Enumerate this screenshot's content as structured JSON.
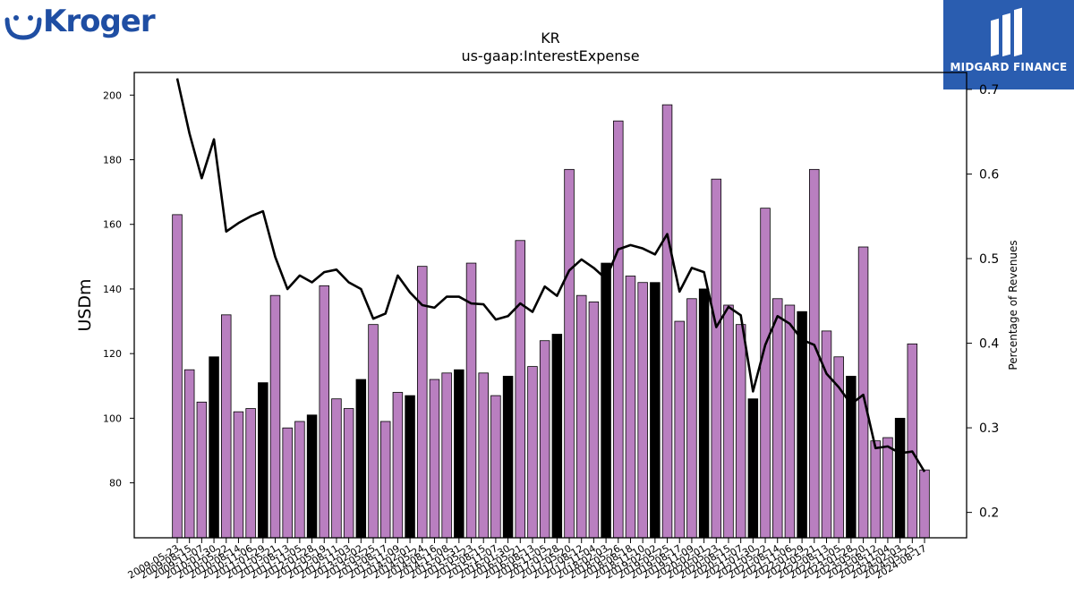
{
  "logos": {
    "left_brand": "Kroger",
    "right_brand": "MIDGARD FINANCE"
  },
  "colors": {
    "bar_default": "#b97fc0",
    "bar_highlight": "#000000",
    "line": "#000000",
    "brand_blue": "#2a5db0",
    "kroger_blue": "#1f4ea3"
  },
  "chart_data": {
    "type": "bar",
    "title": "KR",
    "subtitle": "us-gaap:InterestExpense",
    "ylabel": "USDm",
    "ylabel_right": "Percentage of Revenues",
    "ylim": [
      63,
      207
    ],
    "ylim_right": [
      0.17,
      0.72
    ],
    "yticks": [
      80,
      100,
      120,
      140,
      160,
      180,
      200
    ],
    "yticks_right": [
      0.2,
      0.3,
      0.4,
      0.5,
      0.6,
      0.7
    ],
    "categories": [
      "2009-05-23",
      "2009-08-15",
      "2009-11-07",
      "2010-01-30",
      "2010-05-22",
      "2010-08-14",
      "2010-11-06",
      "2011-01-29",
      "2011-05-21",
      "2011-08-13",
      "2011-11-05",
      "2012-01-28",
      "2012-05-19",
      "2012-08-11",
      "2012-11-03",
      "2013-02-02",
      "2013-05-25",
      "2013-08-17",
      "2013-11-09",
      "2014-02-01",
      "2014-05-24",
      "2014-08-16",
      "2014-11-08",
      "2015-01-31",
      "2015-05-23",
      "2015-08-15",
      "2015-11-07",
      "2016-01-30",
      "2016-05-21",
      "2016-08-13",
      "2016-11-05",
      "2017-01-28",
      "2017-05-20",
      "2017-08-12",
      "2017-11-04",
      "2018-02-03",
      "2018-05-26",
      "2018-08-18",
      "2018-11-10",
      "2019-02-02",
      "2019-05-25",
      "2019-08-17",
      "2019-11-09",
      "2020-02-01",
      "2020-05-23",
      "2020-08-15",
      "2020-11-07",
      "2021-01-30",
      "2021-05-22",
      "2021-08-14",
      "2021-11-06",
      "2022-01-29",
      "2022-05-21",
      "2022-08-13",
      "2022-11-05",
      "2023-01-28",
      "2023-05-20",
      "2023-08-12",
      "2023-11-04",
      "2024-02-03",
      "2024-05-25",
      "2024-08-17"
    ],
    "series": [
      {
        "type": "bar",
        "values": [
          163,
          115,
          105,
          119,
          132,
          102,
          103,
          111,
          138,
          97,
          99,
          101,
          141,
          106,
          103,
          112,
          129,
          99,
          108,
          107,
          147,
          112,
          114,
          115,
          148,
          114,
          107,
          113,
          155,
          116,
          124,
          126,
          177,
          138,
          136,
          148,
          192,
          144,
          142,
          142,
          197,
          130,
          137,
          140,
          174,
          135,
          129,
          106,
          165,
          137,
          135,
          133,
          177,
          127,
          119,
          113,
          153,
          93,
          94,
          100,
          123,
          84
        ],
        "highlight": [
          false,
          false,
          false,
          true,
          false,
          false,
          false,
          true,
          false,
          false,
          false,
          true,
          false,
          false,
          false,
          true,
          false,
          false,
          false,
          true,
          false,
          false,
          false,
          true,
          false,
          false,
          false,
          true,
          false,
          false,
          false,
          true,
          false,
          false,
          false,
          true,
          false,
          false,
          false,
          true,
          false,
          false,
          false,
          true,
          false,
          false,
          false,
          true,
          false,
          false,
          false,
          true,
          false,
          false,
          false,
          true,
          false,
          false,
          false,
          true,
          false,
          false
        ]
      },
      {
        "type": "line",
        "axis": "right",
        "values": [
          0.713,
          0.648,
          0.595,
          0.641,
          0.532,
          0.542,
          0.55,
          0.556,
          0.502,
          0.464,
          0.48,
          0.472,
          0.484,
          0.487,
          0.472,
          0.464,
          0.429,
          0.435,
          0.48,
          0.46,
          0.445,
          0.442,
          0.455,
          0.455,
          0.447,
          0.446,
          0.428,
          0.432,
          0.447,
          0.437,
          0.467,
          0.456,
          0.486,
          0.499,
          0.489,
          0.476,
          0.511,
          0.516,
          0.512,
          0.505,
          0.529,
          0.461,
          0.489,
          0.484,
          0.419,
          0.443,
          0.433,
          0.343,
          0.398,
          0.432,
          0.423,
          0.404,
          0.398,
          0.364,
          0.348,
          0.328,
          0.339,
          0.276,
          0.278,
          0.27,
          0.272,
          0.248
        ]
      }
    ]
  }
}
